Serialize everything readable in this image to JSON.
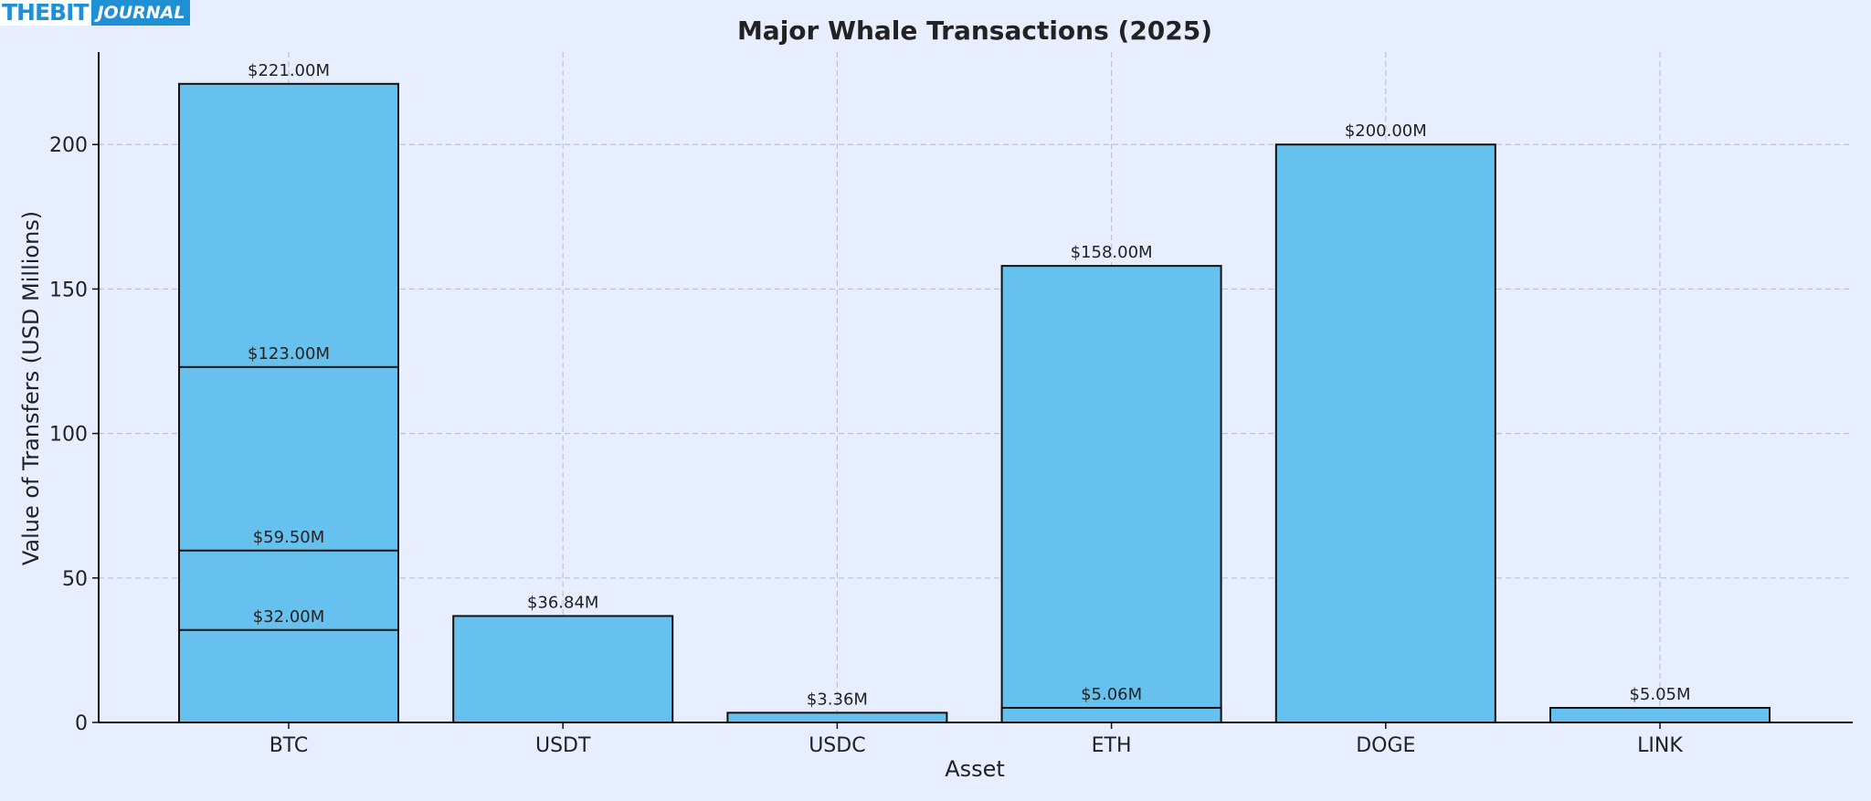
{
  "logo": {
    "part1": "THEBIT",
    "part2": "JOURNAL"
  },
  "chart_data": {
    "type": "bar",
    "title": "Major Whale Transactions (2025)",
    "xlabel": "Asset",
    "ylabel": "Value of Transfers (USD Millions)",
    "categories": [
      "BTC",
      "USDT",
      "USDC",
      "ETH",
      "DOGE",
      "LINK"
    ],
    "bars": [
      {
        "category": "BTC",
        "value": 221.0,
        "label": "$221.00M"
      },
      {
        "category": "BTC",
        "value": 123.0,
        "label": "$123.00M"
      },
      {
        "category": "BTC",
        "value": 59.5,
        "label": "$59.50M"
      },
      {
        "category": "BTC",
        "value": 32.0,
        "label": "$32.00M"
      },
      {
        "category": "USDT",
        "value": 36.84,
        "label": "$36.84M"
      },
      {
        "category": "USDC",
        "value": 3.36,
        "label": "$3.36M"
      },
      {
        "category": "ETH",
        "value": 158.0,
        "label": "$158.00M"
      },
      {
        "category": "ETH",
        "value": 5.06,
        "label": "$5.06M"
      },
      {
        "category": "DOGE",
        "value": 200.0,
        "label": "$200.00M"
      },
      {
        "category": "LINK",
        "value": 5.05,
        "label": "$5.05M"
      }
    ],
    "ylim": [
      0,
      232
    ],
    "yticks": [
      0,
      50,
      100,
      150,
      200
    ],
    "grid": true,
    "colors": {
      "bar": "#66c1ee",
      "edge": "#111111",
      "grid": "#b9c3d6",
      "background": "#e6eeff",
      "text": "#222222"
    }
  }
}
